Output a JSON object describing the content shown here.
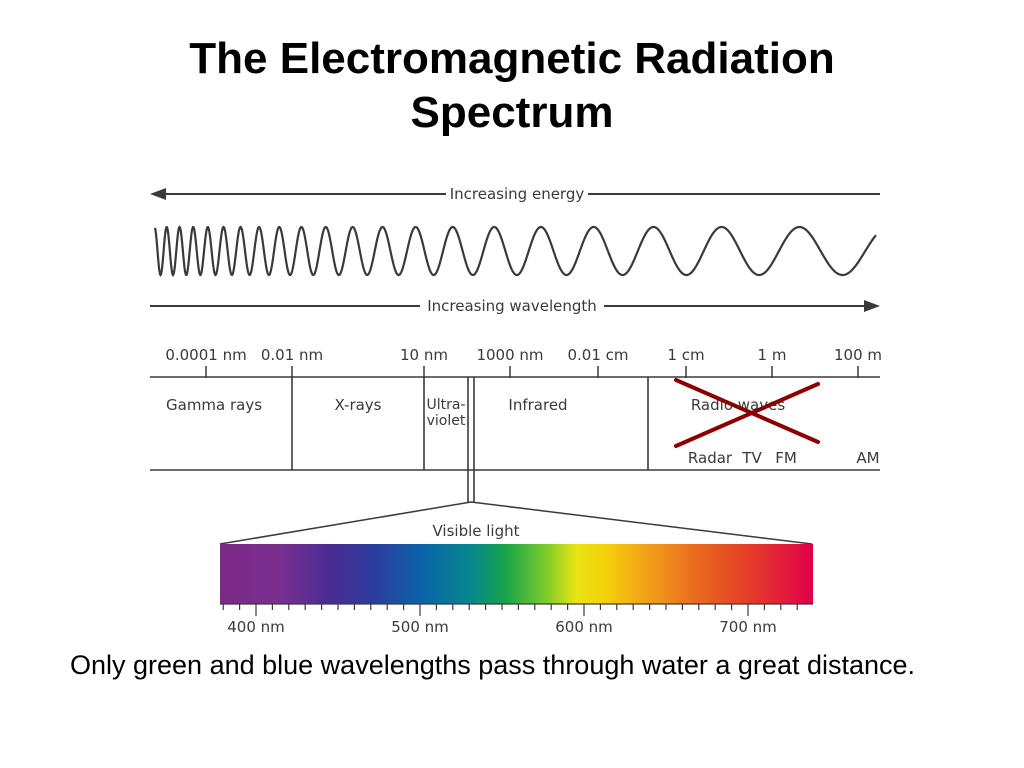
{
  "slide": {
    "title_line1": "The Electromagnetic Radiation",
    "title_line2": "Spectrum",
    "caption": "Only green and blue wavelengths pass through water a great distance."
  },
  "diagram": {
    "energy_label": "Increasing energy",
    "wavelength_label": "Increasing wavelength",
    "scale_ticks": [
      "0.0001 nm",
      "0.01 nm",
      "10 nm",
      "1000 nm",
      "0.01 cm",
      "1 cm",
      "1 m",
      "100 m"
    ],
    "regions": {
      "gamma": "Gamma rays",
      "xrays": "X-rays",
      "uv_line1": "Ultra-",
      "uv_line2": "violet",
      "infrared": "Infrared",
      "radio": "Radio waves"
    },
    "radio_bands": [
      "Radar",
      "TV",
      "FM",
      "AM"
    ],
    "visible_label": "Visible light",
    "visible_ticks": [
      "400 nm",
      "500 nm",
      "600 nm",
      "700 nm"
    ],
    "cross_out_color": "#8b0000"
  }
}
